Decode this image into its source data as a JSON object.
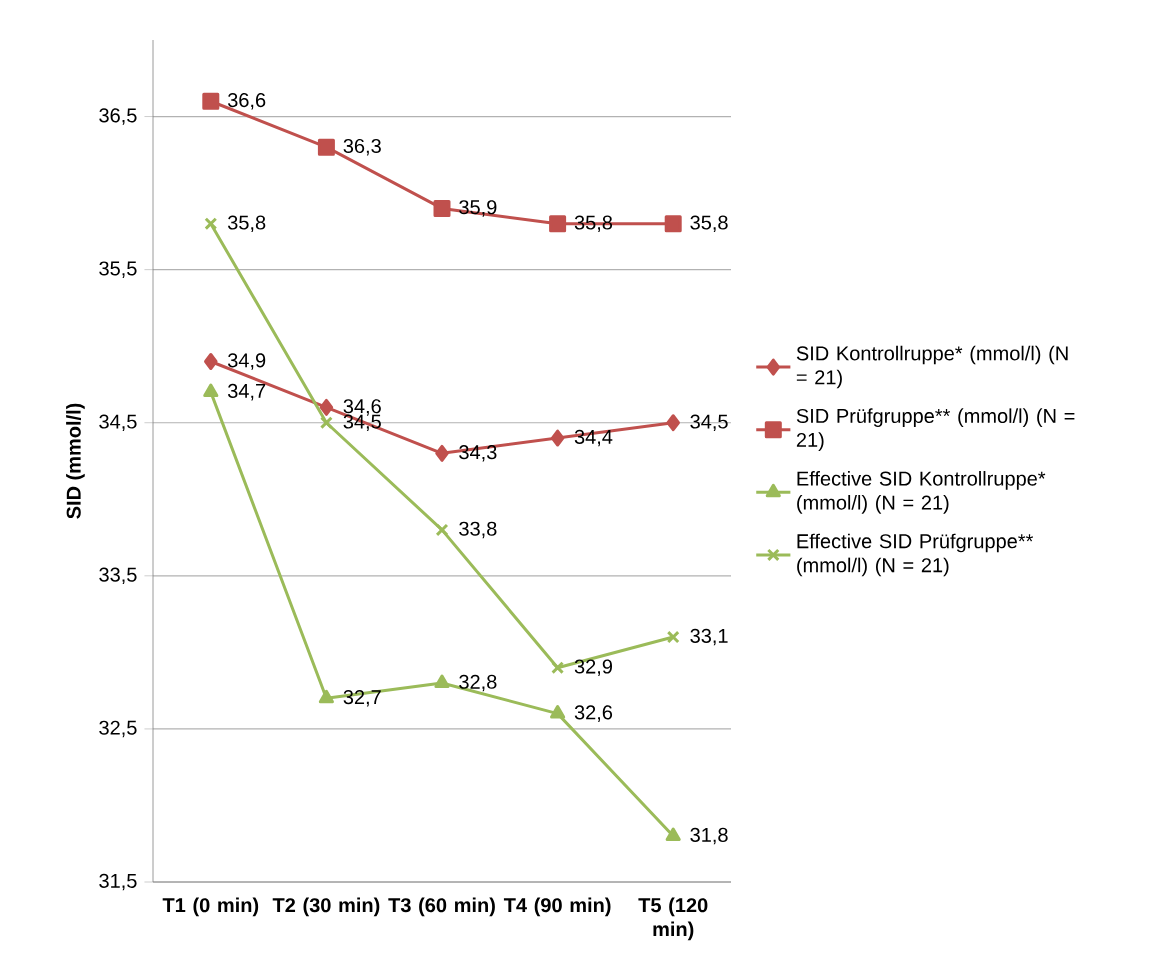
{
  "chart_data": {
    "type": "line",
    "ylabel": "SID (mmol/l)",
    "categories": [
      "T1 (0 min)",
      "T2 (30 min)",
      "T3 (60 min)",
      "T4 (90 min)",
      "T5 (120 min)"
    ],
    "series": [
      {
        "name": "SID Kontrollruppe* (mmol/l) (N = 21)",
        "color": "#c0504d",
        "marker": "diamond",
        "values": [
          34.9,
          34.6,
          34.3,
          34.4,
          34.5
        ],
        "value_labels": [
          "34,9",
          "34,6",
          "34,3",
          "34,4",
          "34,5"
        ]
      },
      {
        "name": "SID Prüfgruppe** (mmol/l) (N = 21)",
        "color": "#c0504d",
        "marker": "square",
        "values": [
          36.6,
          36.3,
          35.9,
          35.8,
          35.8
        ],
        "value_labels": [
          "36,6",
          "36,3",
          "35,9",
          "35,8",
          "35,8"
        ]
      },
      {
        "name": "Effective SID Kontrollruppe* (mmol/l) (N = 21)",
        "color": "#9bbb59",
        "marker": "triangle",
        "values": [
          34.7,
          32.7,
          32.8,
          32.6,
          31.8
        ],
        "value_labels": [
          "34,7",
          "32,7",
          "32,8",
          "32,6",
          "31,8"
        ]
      },
      {
        "name": "Effective SID Prüfgruppe** (mmol/l) (N = 21)",
        "color": "#9bbb59",
        "marker": "cross",
        "values": [
          35.8,
          34.5,
          33.8,
          32.9,
          33.1
        ],
        "value_labels": [
          "35,8",
          "34,5",
          "33,8",
          "32,9",
          "33,1"
        ]
      }
    ],
    "ylim": [
      31.5,
      37
    ],
    "yticks": [
      {
        "value": 31.5,
        "label": "31,5"
      },
      {
        "value": 32.5,
        "label": "32,5"
      },
      {
        "value": 33.5,
        "label": "33,5"
      },
      {
        "value": 34.5,
        "label": "34,5"
      },
      {
        "value": 35.5,
        "label": "35,5"
      },
      {
        "value": 36.5,
        "label": "36,5"
      }
    ],
    "grid": "y",
    "legend": "right",
    "line_style": "solid"
  }
}
